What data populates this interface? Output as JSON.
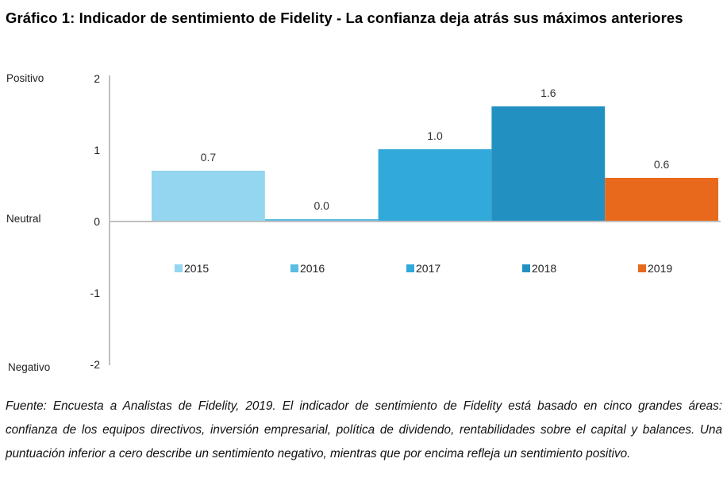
{
  "title": "Gráfico 1:  Indicador de sentimiento de Fidelity - La confianza deja atrás sus máximos anteriores",
  "caption": "Fuente: Encuesta a Analistas de Fidelity, 2019. El indicador de sentimiento de Fidelity está basado en cinco grandes áreas: confianza de los equipos directivos, inversión empresarial, política de dividendo, rentabilidades sobre el capital y balances. Una puntuación inferior a cero describe un sentimiento negativo, mientras que por encima refleja un sentimiento positivo.",
  "chart_data": {
    "type": "bar",
    "title": "Indicador de sentimiento de Fidelity",
    "xlabel": "",
    "ylabel": "",
    "categories": [
      "2015",
      "2016",
      "2017",
      "2018",
      "2019"
    ],
    "values": [
      0.7,
      0.0,
      1.0,
      1.6,
      0.6
    ],
    "data_labels": [
      "0.7",
      "0.0",
      "1.0",
      "1.6",
      "0.6"
    ],
    "colors": [
      "#94d5ef",
      "#5bbde3",
      "#31a9da",
      "#2291c2",
      "#e8691b"
    ],
    "ylim": [
      -2,
      2
    ],
    "yticks": [
      2,
      1,
      0,
      -1,
      -2
    ],
    "ytick_labels": [
      "2",
      "1",
      "0",
      "-1",
      "-2"
    ],
    "y_annotations": [
      {
        "label": "Positivo",
        "at": 2
      },
      {
        "label": "Neutral",
        "at": 0
      },
      {
        "label": "Negativo",
        "at": -2
      }
    ],
    "grid": false,
    "legend": {
      "placement": "below-zero-line",
      "entries": [
        "2015",
        "2016",
        "2017",
        "2018",
        "2019"
      ]
    },
    "axis_color": "#c0c0c0"
  }
}
